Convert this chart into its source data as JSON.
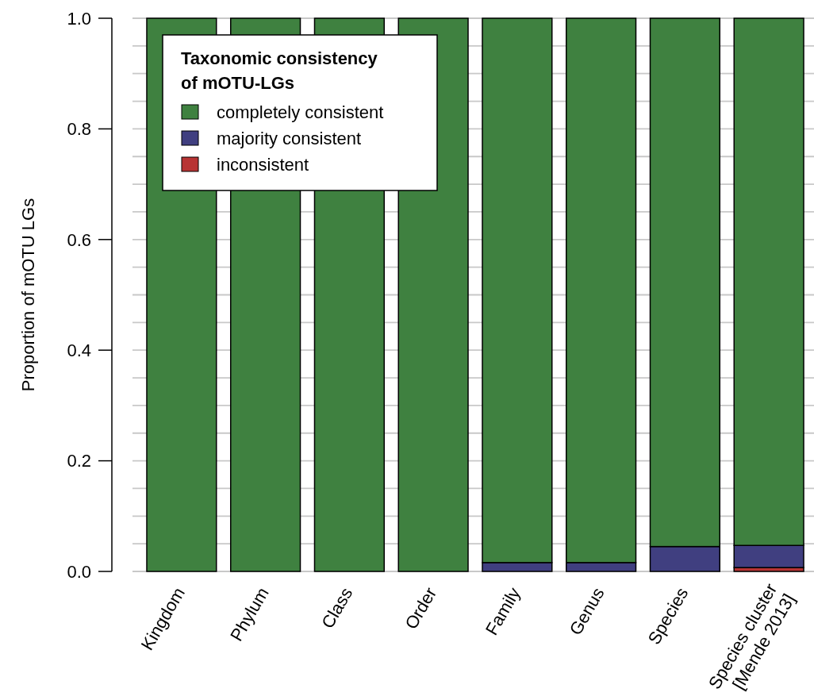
{
  "chart_data": {
    "type": "bar",
    "stacked": true,
    "ylabel": "Proportion of mOTU LGs",
    "legend_title": "Taxonomic consistency\nof mOTU-LGs",
    "legend": "top left",
    "grid": "y",
    "categories": [
      "Kingdom",
      "Phylum",
      "Class",
      "Order",
      "Family",
      "Genus",
      "Species",
      "Species cluster\n[Mende 2013]"
    ],
    "series": [
      {
        "name": "inconsistent",
        "color": "#b83434",
        "values": [
          0,
          0,
          0,
          0,
          0,
          0,
          0,
          0.007
        ]
      },
      {
        "name": "majority consistent",
        "color": "#403f80",
        "values": [
          0,
          0,
          0,
          0,
          0.016,
          0.016,
          0.045,
          0.04
        ]
      },
      {
        "name": "completely consistent",
        "color": "#3f8140",
        "values": [
          1,
          1,
          1,
          1,
          0.984,
          0.984,
          0.955,
          0.953
        ]
      }
    ],
    "ylim": [
      0,
      1
    ],
    "yticks": [
      {
        "value": 0,
        "label": "0.0"
      },
      {
        "value": 0.05,
        "label": null
      },
      {
        "value": 0.1,
        "label": null
      },
      {
        "value": 0.15,
        "label": null
      },
      0.2,
      {
        "value": 0.25,
        "label": null
      },
      {
        "value": 0.3,
        "label": null
      },
      {
        "value": 0.35,
        "label": null
      },
      0.4,
      {
        "value": 0.45,
        "label": null
      },
      {
        "value": 0.5,
        "label": null
      },
      {
        "value": 0.55,
        "label": null
      },
      0.6,
      {
        "value": 0.65,
        "label": null
      },
      {
        "value": 0.7,
        "label": null
      },
      {
        "value": 0.75,
        "label": null
      },
      0.8,
      {
        "value": 0.85,
        "label": null
      },
      {
        "value": 0.9,
        "label": null
      },
      {
        "value": 0.95,
        "label": null
      },
      {
        "value": 1,
        "label": "1.0"
      }
    ]
  }
}
